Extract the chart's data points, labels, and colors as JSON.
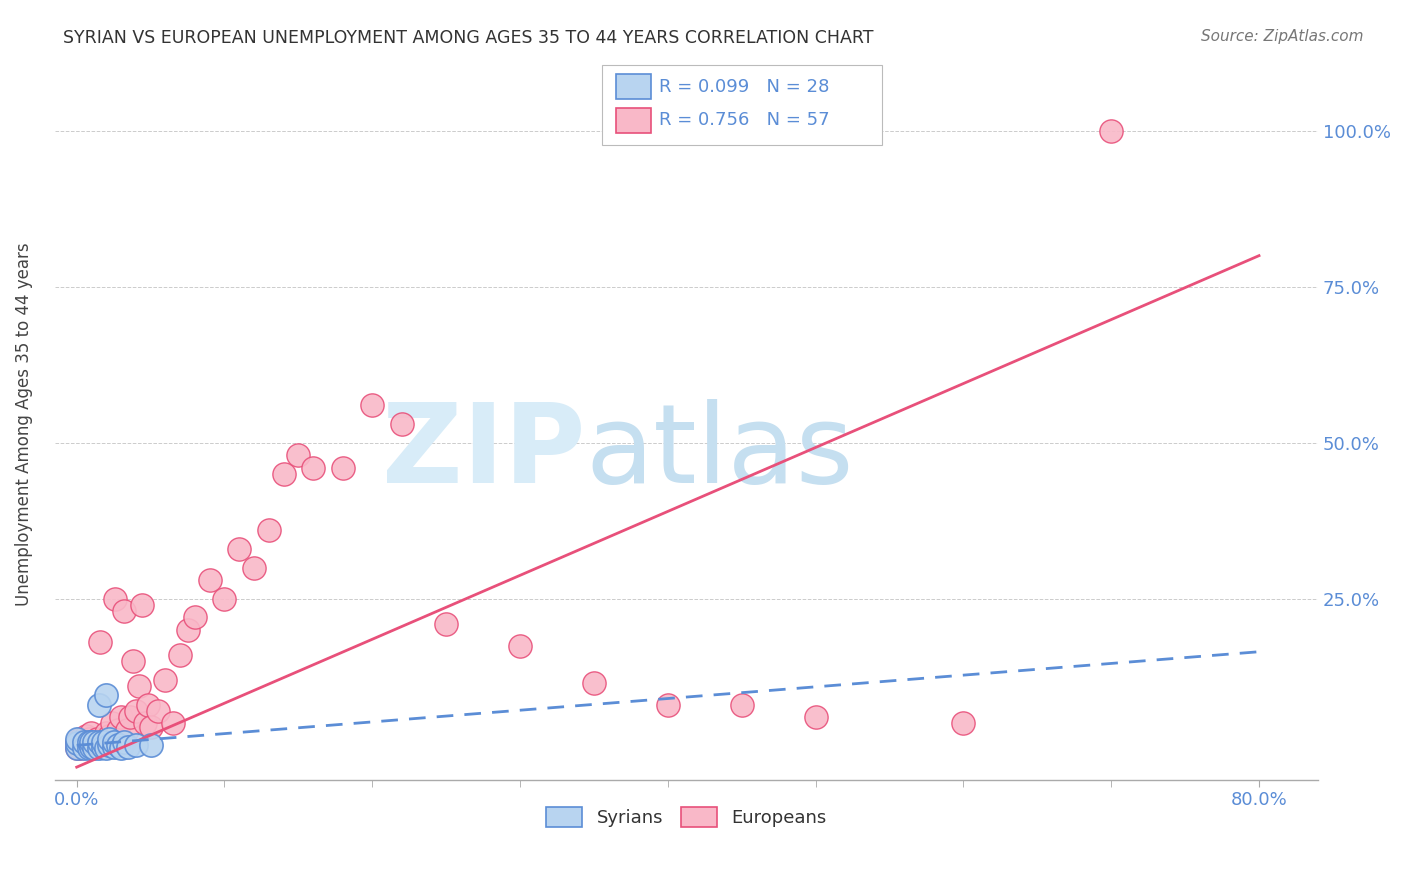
{
  "title": "SYRIAN VS EUROPEAN UNEMPLOYMENT AMONG AGES 35 TO 44 YEARS CORRELATION CHART",
  "source": "Source: ZipAtlas.com",
  "ylabel": "Unemployment Among Ages 35 to 44 years",
  "ytick_labels": [
    "100.0%",
    "75.0%",
    "50.0%",
    "25.0%"
  ],
  "ytick_values": [
    1.0,
    0.75,
    0.5,
    0.25
  ],
  "xtick_labels": [
    "0.0%",
    "80.0%"
  ],
  "xtick_positions": [
    0.0,
    0.8
  ],
  "xtick_minor": [
    0.1,
    0.2,
    0.3,
    0.4,
    0.5,
    0.6,
    0.7
  ],
  "xlim": [
    -0.015,
    0.84
  ],
  "ylim": [
    -0.04,
    1.1
  ],
  "background_color": "#ffffff",
  "grid_color": "#cccccc",
  "syrians_color": "#b8d4f0",
  "europeans_color": "#f9b8c8",
  "syrians_edge_color": "#5b8dd6",
  "europeans_edge_color": "#e8507a",
  "syrians_line_color": "#5b8dd6",
  "europeans_line_color": "#e8507a",
  "legend_R_syrians": "R = 0.099",
  "legend_N_syrians": "N = 28",
  "legend_R_europeans": "R = 0.756",
  "legend_N_europeans": "N = 57",
  "title_color": "#333333",
  "label_color": "#5b8dd6",
  "syrians_x": [
    0.0,
    0.0,
    0.0,
    0.005,
    0.005,
    0.008,
    0.008,
    0.01,
    0.01,
    0.012,
    0.012,
    0.015,
    0.015,
    0.015,
    0.018,
    0.018,
    0.02,
    0.02,
    0.022,
    0.022,
    0.025,
    0.025,
    0.028,
    0.03,
    0.032,
    0.035,
    0.04,
    0.05
  ],
  "syrians_y": [
    0.01,
    0.018,
    0.025,
    0.01,
    0.02,
    0.01,
    0.02,
    0.012,
    0.02,
    0.01,
    0.02,
    0.01,
    0.02,
    0.08,
    0.012,
    0.02,
    0.01,
    0.095,
    0.015,
    0.025,
    0.012,
    0.02,
    0.015,
    0.01,
    0.02,
    0.012,
    0.015,
    0.015
  ],
  "europeans_x": [
    0.0,
    0.0,
    0.002,
    0.002,
    0.004,
    0.004,
    0.006,
    0.006,
    0.008,
    0.008,
    0.01,
    0.01,
    0.012,
    0.014,
    0.016,
    0.018,
    0.02,
    0.022,
    0.024,
    0.026,
    0.028,
    0.03,
    0.032,
    0.034,
    0.036,
    0.038,
    0.04,
    0.042,
    0.044,
    0.046,
    0.048,
    0.05,
    0.055,
    0.06,
    0.065,
    0.07,
    0.075,
    0.08,
    0.09,
    0.1,
    0.11,
    0.12,
    0.13,
    0.14,
    0.15,
    0.16,
    0.18,
    0.2,
    0.22,
    0.25,
    0.3,
    0.35,
    0.4,
    0.45,
    0.5,
    0.6,
    0.7
  ],
  "europeans_y": [
    0.01,
    0.02,
    0.01,
    0.025,
    0.012,
    0.022,
    0.015,
    0.03,
    0.012,
    0.025,
    0.015,
    0.035,
    0.02,
    0.025,
    0.18,
    0.025,
    0.035,
    0.03,
    0.05,
    0.25,
    0.04,
    0.06,
    0.23,
    0.04,
    0.06,
    0.15,
    0.07,
    0.11,
    0.24,
    0.05,
    0.08,
    0.045,
    0.07,
    0.12,
    0.05,
    0.16,
    0.2,
    0.22,
    0.28,
    0.25,
    0.33,
    0.3,
    0.36,
    0.45,
    0.48,
    0.46,
    0.46,
    0.56,
    0.53,
    0.21,
    0.175,
    0.115,
    0.08,
    0.08,
    0.06,
    0.05,
    1.0
  ],
  "europeans_line_x0": 0.0,
  "europeans_line_y0": -0.02,
  "europeans_line_x1": 0.8,
  "europeans_line_y1": 0.8,
  "syrians_line_x0": 0.0,
  "syrians_line_y0": 0.015,
  "syrians_line_x1": 0.8,
  "syrians_line_y1": 0.165,
  "watermark_zip": "ZIP",
  "watermark_atlas": "atlas",
  "watermark_color_zip": "#d8ecf8",
  "watermark_color_atlas": "#c5dff0"
}
